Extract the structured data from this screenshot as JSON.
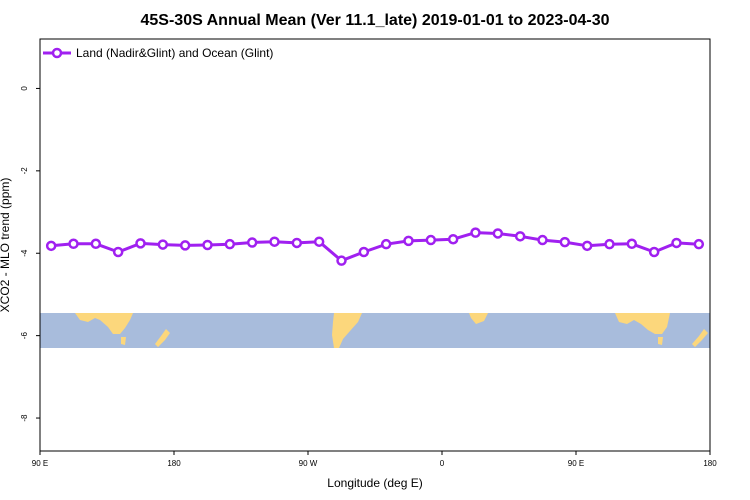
{
  "chart_data": {
    "type": "line",
    "title": "45S-30S Annual Mean (Ver 11.1_late)   2019-01-01 to 2023-04-30",
    "xlabel": "Longitude (deg E)",
    "ylabel": "XCO2 - MLO trend (ppm)",
    "xlim": [
      90,
      540
    ],
    "ylim": [
      -8.8,
      1.2
    ],
    "x_ticks": [
      {
        "value": 90,
        "label": "90 E"
      },
      {
        "value": 180,
        "label": "180"
      },
      {
        "value": 270,
        "label": "90 W"
      },
      {
        "value": 360,
        "label": "0"
      },
      {
        "value": 450,
        "label": "90 E"
      },
      {
        "value": 540,
        "label": "180"
      }
    ],
    "y_ticks": [
      {
        "value": 0,
        "label": "0"
      },
      {
        "value": -2,
        "label": "-2"
      },
      {
        "value": -4,
        "label": "-4"
      },
      {
        "value": -6,
        "label": "-6"
      },
      {
        "value": -8,
        "label": "-8"
      }
    ],
    "legend": {
      "position": "top-left",
      "label": "Land (Nadir&Glint) and Ocean (Glint)"
    },
    "colors": {
      "series": "#a020f0",
      "ocean": "#a8bcdc",
      "land": "#fcd77c"
    },
    "map_band": {
      "lat_range": "45S-30S",
      "y_top": -5.45,
      "y_bottom": -6.25
    },
    "series": [
      {
        "name": "Land (Nadir&Glint) and Ocean (Glint)",
        "x": [
          97.5,
          112.5,
          127.5,
          142.5,
          157.5,
          172.5,
          187.5,
          202.5,
          217.5,
          232.5,
          247.5,
          262.5,
          277.5,
          292.5,
          307.5,
          322.5,
          337.5,
          352.5,
          367.5,
          382.5,
          397.5,
          412.5,
          427.5,
          442.5,
          457.5,
          472.5,
          487.5,
          502.5,
          517.5,
          532.5
        ],
        "y": [
          -3.82,
          -3.77,
          -3.77,
          -3.97,
          -3.76,
          -3.79,
          -3.81,
          -3.8,
          -3.78,
          -3.74,
          -3.72,
          -3.75,
          -3.72,
          -4.18,
          -3.97,
          -3.78,
          -3.7,
          -3.68,
          -3.66,
          -3.5,
          -3.52,
          -3.59,
          -3.68,
          -3.73,
          -3.82,
          -3.78,
          -3.77,
          -3.97,
          -3.75,
          -3.78
        ]
      }
    ]
  }
}
